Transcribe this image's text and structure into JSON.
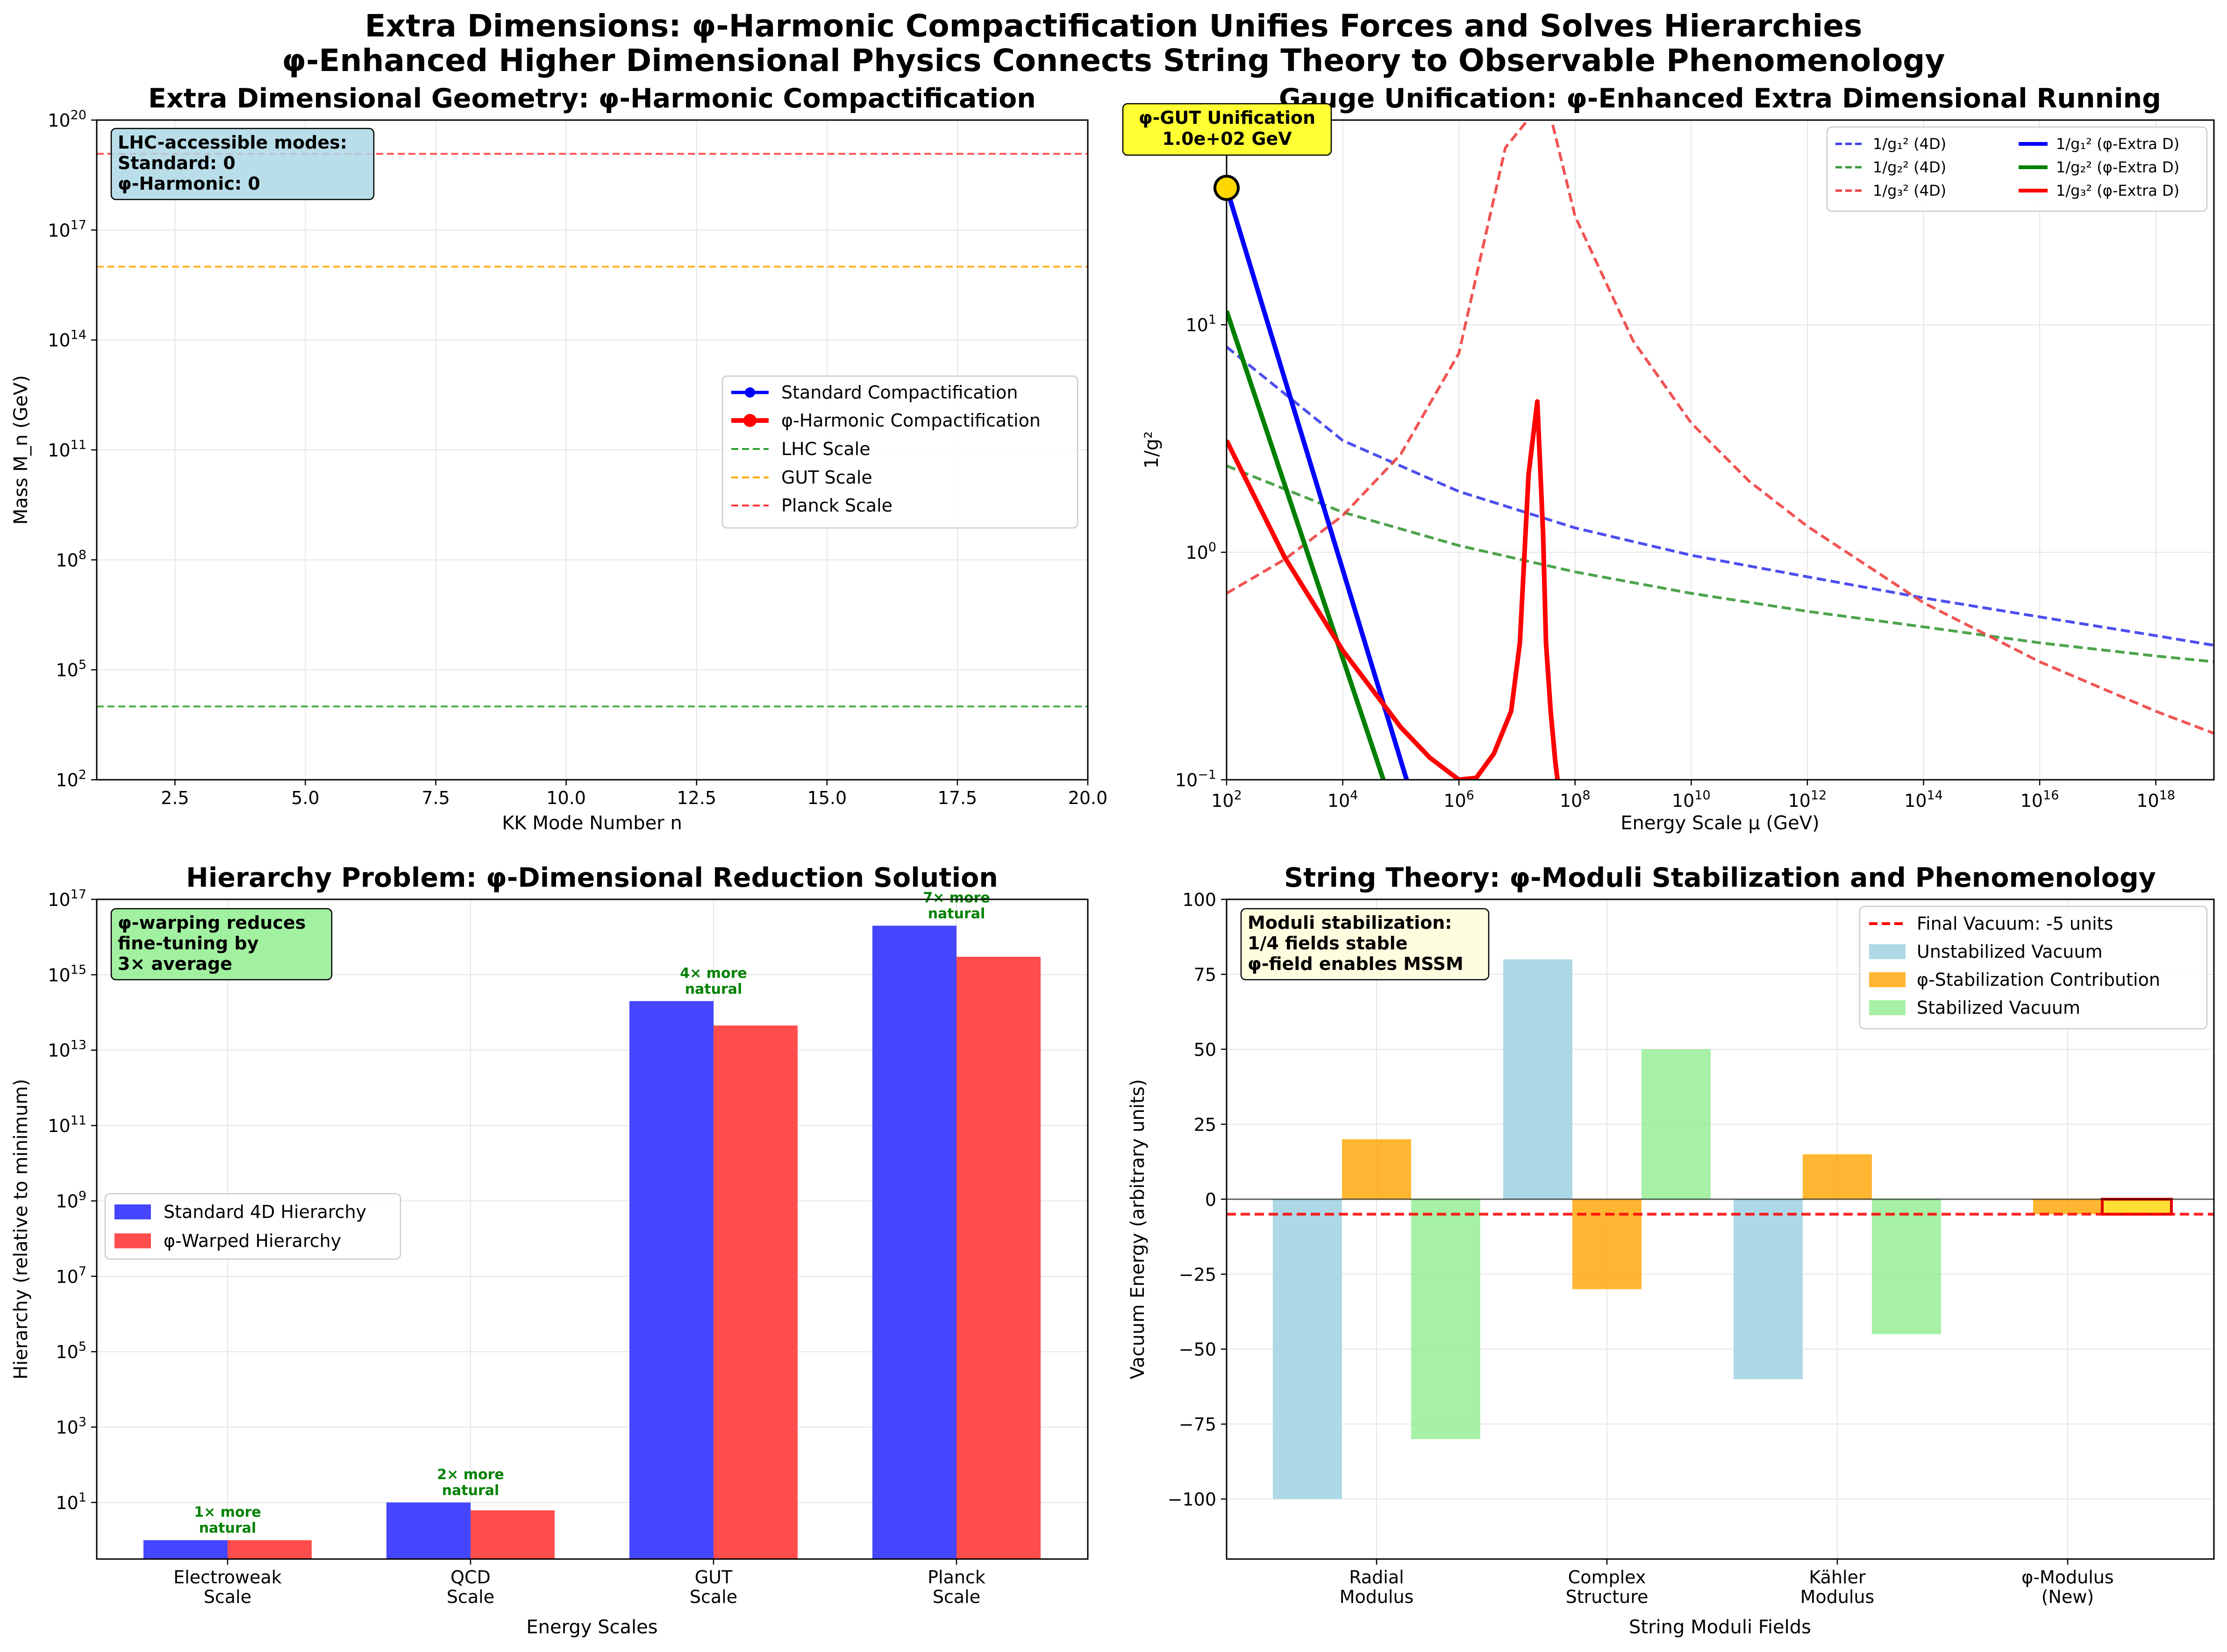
{
  "figure": {
    "title_line1": "Extra Dimensions: φ-Harmonic Compactification Unifies Forces and Solves Hierarchies",
    "title_line2": "φ-Enhanced Higher Dimensional Physics Connects String Theory to Observable Phenomenology"
  },
  "chart_data": [
    {
      "id": "kk",
      "type": "line",
      "title": "Extra Dimensional Geometry: φ-Harmonic Compactification",
      "xlabel": "KK Mode Number n",
      "ylabel": "Mass M_n (GeV)",
      "xlim": [
        1,
        20
      ],
      "yscale": "log",
      "ylim_exp": [
        2,
        20
      ],
      "xticks": [
        "2.5",
        "5.0",
        "7.5",
        "10.0",
        "12.5",
        "15.0",
        "17.5",
        "20.0"
      ],
      "xtick_values": [
        2.5,
        5,
        7.5,
        10,
        12.5,
        15,
        17.5,
        20
      ],
      "yticks": [
        "10",
        "10",
        "10",
        "10",
        "10",
        "10",
        "10"
      ],
      "ytick_exps": [
        "2",
        "5",
        "8",
        "11",
        "14",
        "17",
        "20"
      ],
      "grid": true,
      "series": [
        {
          "name": "Standard Compactification",
          "color": "#0000ff",
          "marker": "circle",
          "values": []
        },
        {
          "name": "φ-Harmonic Compactification",
          "color": "#ff0000",
          "marker": "circle",
          "values": []
        }
      ],
      "hlines": [
        {
          "name": "LHC Scale",
          "value": 10000,
          "color": "#2ca02c"
        },
        {
          "name": "GUT Scale",
          "value": 1e+16,
          "color": "#ffa500"
        },
        {
          "name": "Planck Scale",
          "value": 1.2e+19,
          "color": "#ff3333"
        }
      ],
      "legend": "center-right",
      "annotation": [
        "LHC-accessible modes:",
        "Standard: 0",
        "φ-Harmonic: 0"
      ]
    },
    {
      "id": "gauge",
      "type": "line",
      "title": "Gauge Unification: φ-Enhanced Extra Dimensional Running",
      "xlabel": "Energy Scale μ (GeV)",
      "ylabel": "1/g²",
      "xscale": "log",
      "yscale": "log",
      "xlim_exp": [
        2,
        19
      ],
      "ylim_exp": [
        -1,
        1.9
      ],
      "xticks": [
        "10",
        "10",
        "10",
        "10",
        "10",
        "10",
        "10",
        "10",
        "10"
      ],
      "xtick_exps": [
        "2",
        "4",
        "6",
        "8",
        "10",
        "12",
        "14",
        "16",
        "18"
      ],
      "yticks": [
        "10",
        "10",
        "10"
      ],
      "ytick_exps": [
        "−1",
        "0",
        "1"
      ],
      "grid": true,
      "series": [
        {
          "name": "1/g₁² (4D)",
          "style": "dashed",
          "color": "#3b3bf0",
          "x_exp": [
            2,
            4,
            6,
            8,
            10,
            12,
            14,
            16,
            18,
            19
          ],
          "values": [
            8.0,
            3.1,
            1.85,
            1.28,
            0.97,
            0.78,
            0.63,
            0.52,
            0.43,
            0.39
          ]
        },
        {
          "name": "1/g₂² (4D)",
          "style": "dashed",
          "color": "#3a9a3a",
          "x_exp": [
            2,
            4,
            6,
            8,
            10,
            12,
            14,
            16,
            18,
            19
          ],
          "values": [
            2.4,
            1.5,
            1.07,
            0.82,
            0.66,
            0.55,
            0.47,
            0.4,
            0.35,
            0.33
          ]
        },
        {
          "name": "1/g₃² (4D)",
          "style": "dashed",
          "color": "#f04040",
          "x_exp": [
            2,
            3,
            4,
            5,
            6,
            6.8,
            7.5,
            8,
            9,
            10,
            11,
            12,
            14,
            16,
            18,
            19
          ],
          "values": [
            0.66,
            0.93,
            1.45,
            2.7,
            7.5,
            60,
            100,
            30,
            8.5,
            3.7,
            2.05,
            1.3,
            0.6,
            0.33,
            0.2,
            0.16
          ]
        },
        {
          "name": "1/g₁² (φ-Extra D)",
          "style": "solid",
          "color": "#0000ff",
          "x_exp": [
            2,
            5.1
          ],
          "values": [
            40,
            0.1
          ]
        },
        {
          "name": "1/g₂² (φ-Extra D)",
          "style": "solid",
          "color": "#008000",
          "x_exp": [
            2,
            4.7
          ],
          "values": [
            11.5,
            0.1
          ]
        },
        {
          "name": "1/g₃² (φ-Extra D)",
          "style": "solid",
          "color": "#ff0000",
          "x_exp": [
            2,
            3,
            4,
            5,
            5.5,
            6,
            6.3,
            6.6,
            6.9,
            7.05,
            7.2,
            7.35,
            7.45,
            7.5,
            7.58,
            7.66,
            7.72
          ],
          "values": [
            3.1,
            0.95,
            0.37,
            0.17,
            0.125,
            0.1,
            0.102,
            0.13,
            0.2,
            0.4,
            2.2,
            4.6,
            1.2,
            0.4,
            0.2,
            0.12,
            0.09
          ]
        }
      ],
      "legend": "top-right",
      "annotation": [
        "φ-GUT Unification",
        "1.0e+02 GeV"
      ],
      "unification_point": {
        "x": 100,
        "y": 40
      }
    },
    {
      "id": "hierarchy",
      "type": "bar",
      "title": "Hierarchy Problem: φ-Dimensional Reduction Solution",
      "xlabel": "Energy Scales",
      "ylabel": "Hierarchy (relative to minimum)",
      "yscale": "log",
      "ylim_exp": [
        -0.5,
        17
      ],
      "categories": [
        [
          "Electroweak",
          "Scale"
        ],
        [
          "QCD",
          "Scale"
        ],
        [
          "GUT",
          "Scale"
        ],
        [
          "Planck",
          "Scale"
        ]
      ],
      "yticks": [
        "10",
        "10",
        "10",
        "10",
        "10",
        "10",
        "10",
        "10",
        "10"
      ],
      "ytick_exps": [
        "1",
        "3",
        "5",
        "7",
        "9",
        "11",
        "13",
        "15",
        "17"
      ],
      "grid": true,
      "series": [
        {
          "name": "Standard 4D Hierarchy",
          "color": "#4646ff",
          "values": [
            1,
            10,
            200000000000000.0,
            2e+16
          ]
        },
        {
          "name": "φ-Warped Hierarchy",
          "color": "#ff4c4c",
          "values": [
            1,
            6.2,
            45000000000000.0,
            3000000000000000.0
          ]
        }
      ],
      "labels": [
        [
          "1× more",
          "natural"
        ],
        [
          "2× more",
          "natural"
        ],
        [
          "4× more",
          "natural"
        ],
        [
          "7× more",
          "natural"
        ]
      ],
      "legend": "center-left",
      "annotation": [
        "φ-warping reduces",
        "fine-tuning by",
        "3× average"
      ]
    },
    {
      "id": "moduli",
      "type": "bar",
      "title": "String Theory: φ-Moduli Stabilization and Phenomenology",
      "xlabel": "String Moduli Fields",
      "ylabel": "Vacuum Energy (arbitrary units)",
      "ylim": [
        -120,
        100
      ],
      "categories": [
        [
          "Radial",
          "Modulus"
        ],
        [
          "Complex",
          "Structure"
        ],
        [
          "Kähler",
          "Modulus"
        ],
        [
          "φ-Modulus",
          "(New)"
        ]
      ],
      "yticks": [
        "−100",
        "−75",
        "−50",
        "−25",
        "0",
        "25",
        "50",
        "75",
        "100"
      ],
      "ytick_values": [
        -100,
        -75,
        -50,
        -25,
        0,
        25,
        50,
        75,
        100
      ],
      "grid": true,
      "series": [
        {
          "name": "Unstabilized Vacuum",
          "color": "#add8e6",
          "values": [
            -100,
            80,
            -60,
            0
          ]
        },
        {
          "name": "φ-Stabilization Contribution",
          "color": "#ffa500",
          "values": [
            20,
            -30,
            15,
            -5
          ]
        },
        {
          "name": "Stabilized Vacuum",
          "color": "#90ee90",
          "values": [
            -80,
            50,
            -45,
            -5
          ]
        }
      ],
      "hline": {
        "name": "Final Vacuum: -5 units",
        "value": -5,
        "color": "#ff0000"
      },
      "legend": "top-right",
      "annotation": [
        "Moduli stabilization:",
        "1/4 fields stable",
        "φ-field enables MSSM"
      ]
    }
  ]
}
